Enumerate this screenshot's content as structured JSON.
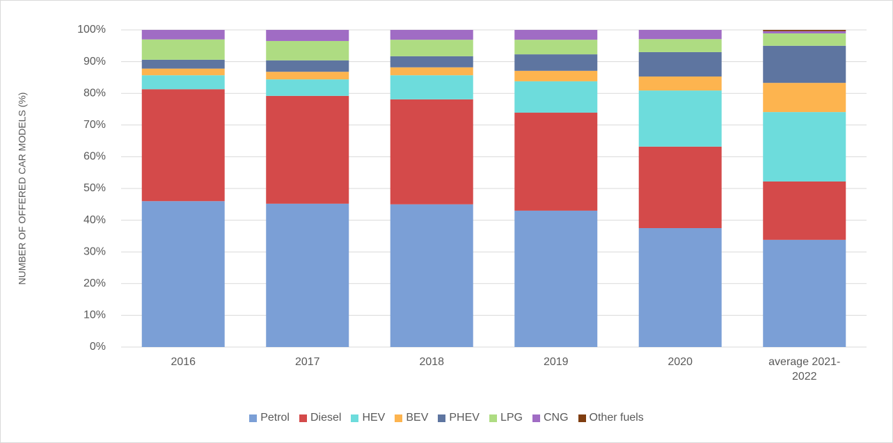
{
  "chart_data": {
    "type": "stacked_bar",
    "y_label": "NUMBER OF OFFERED CAR MODELS (%)",
    "categories": [
      "2016",
      "2017",
      "2018",
      "2019",
      "2020",
      "average 2021-2022"
    ],
    "series": [
      {
        "name": "Petrol",
        "color": "#7b9fd6",
        "values": [
          46.0,
          45.2,
          45.0,
          43.0,
          37.5,
          33.8
        ]
      },
      {
        "name": "Diesel",
        "color": "#d44a4a",
        "values": [
          35.3,
          34.0,
          33.1,
          30.9,
          25.7,
          18.4
        ]
      },
      {
        "name": "HEV",
        "color": "#6ddcdc",
        "values": [
          4.4,
          5.2,
          7.6,
          9.9,
          17.7,
          21.9
        ]
      },
      {
        "name": "BEV",
        "color": "#fdb44f",
        "values": [
          2.1,
          2.4,
          2.5,
          3.3,
          4.4,
          9.2
        ]
      },
      {
        "name": "PHEV",
        "color": "#5e75a0",
        "values": [
          2.8,
          3.6,
          3.5,
          5.2,
          7.7,
          11.7
        ]
      },
      {
        "name": "LPG",
        "color": "#aedc82",
        "values": [
          6.4,
          6.1,
          5.2,
          4.6,
          4.1,
          3.9
        ]
      },
      {
        "name": "CNG",
        "color": "#a06cc4",
        "values": [
          3.0,
          3.5,
          3.1,
          3.1,
          2.9,
          0.7
        ]
      },
      {
        "name": "Other fuels",
        "color": "#7f3d10",
        "values": [
          0,
          0,
          0,
          0,
          0,
          0.4
        ]
      }
    ],
    "ylim": [
      0,
      100
    ],
    "yticks": [
      {
        "value": 0,
        "label": "0%"
      },
      {
        "value": 10,
        "label": "10%"
      },
      {
        "value": 20,
        "label": "20%"
      },
      {
        "value": 30,
        "label": "30%"
      },
      {
        "value": 40,
        "label": "40%"
      },
      {
        "value": 50,
        "label": "50%"
      },
      {
        "value": 60,
        "label": "60%"
      },
      {
        "value": 70,
        "label": "70%"
      },
      {
        "value": 80,
        "label": "80%"
      },
      {
        "value": 90,
        "label": "90%"
      },
      {
        "value": 100,
        "label": "100%"
      }
    ],
    "grid": true,
    "legend": "bottom"
  }
}
